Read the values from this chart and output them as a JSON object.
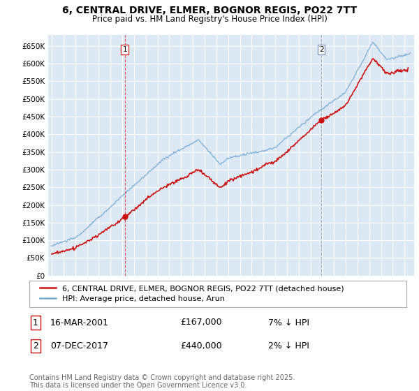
{
  "title": "6, CENTRAL DRIVE, ELMER, BOGNOR REGIS, PO22 7TT",
  "subtitle": "Price paid vs. HM Land Registry's House Price Index (HPI)",
  "ylim": [
    0,
    680000
  ],
  "yticks": [
    0,
    50000,
    100000,
    150000,
    200000,
    250000,
    300000,
    350000,
    400000,
    450000,
    500000,
    550000,
    600000,
    650000
  ],
  "xlim_start": 1994.7,
  "xlim_end": 2025.8,
  "background_color": "#ffffff",
  "chart_bg_color": "#dce9f5",
  "grid_color": "#ffffff",
  "hpi_color": "#7aaed6",
  "price_color": "#cc1111",
  "marker1_x": 2001.21,
  "marker1_y": 167000,
  "marker1_label": "1",
  "marker1_line_color": "#dd3333",
  "marker2_x": 2017.92,
  "marker2_y": 440000,
  "marker2_label": "2",
  "marker2_line_color": "#8899bb",
  "legend_line1": "6, CENTRAL DRIVE, ELMER, BOGNOR REGIS, PO22 7TT (detached house)",
  "legend_line2": "HPI: Average price, detached house, Arun",
  "annotation1_num": "1",
  "annotation1_date": "16-MAR-2001",
  "annotation1_price": "£167,000",
  "annotation1_hpi": "7% ↓ HPI",
  "annotation2_num": "2",
  "annotation2_date": "07-DEC-2017",
  "annotation2_price": "£440,000",
  "annotation2_hpi": "2% ↓ HPI",
  "footer": "Contains HM Land Registry data © Crown copyright and database right 2025.\nThis data is licensed under the Open Government Licence v3.0.",
  "title_fontsize": 10,
  "subtitle_fontsize": 8.5,
  "tick_fontsize": 7.5,
  "legend_fontsize": 8,
  "annot_fontsize": 9,
  "footer_fontsize": 7
}
